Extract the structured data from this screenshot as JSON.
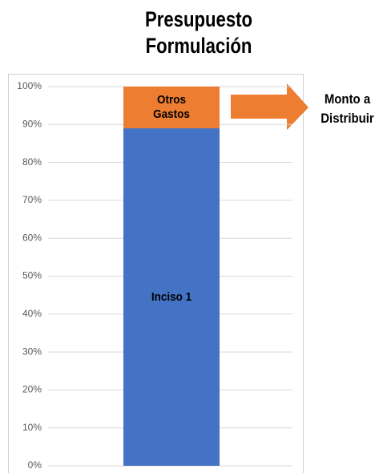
{
  "chart_data": {
    "type": "stacked_bar",
    "title": "Presupuesto Formulación",
    "categories": [
      null
    ],
    "series": [
      {
        "name": "Inciso 1",
        "color": "#4472c4",
        "values": [
          89
        ]
      },
      {
        "name": "Otros Gastos",
        "color": "#ed7d31",
        "values": [
          11
        ]
      }
    ],
    "ylim": [
      0,
      100
    ],
    "yticks": [
      {
        "value": 0,
        "label": "0%"
      },
      {
        "value": 10,
        "label": "10%"
      },
      {
        "value": 20,
        "label": "20%"
      },
      {
        "value": 30,
        "label": "30%"
      },
      {
        "value": 40,
        "label": "40%"
      },
      {
        "value": 50,
        "label": "50%"
      },
      {
        "value": 60,
        "label": "60%"
      },
      {
        "value": 70,
        "label": "70%"
      },
      {
        "value": 80,
        "label": "80%"
      },
      {
        "value": 90,
        "label": "90%"
      },
      {
        "value": 100,
        "label": "100%"
      }
    ],
    "grid": true,
    "annotation": "Monto a Distribuir"
  }
}
